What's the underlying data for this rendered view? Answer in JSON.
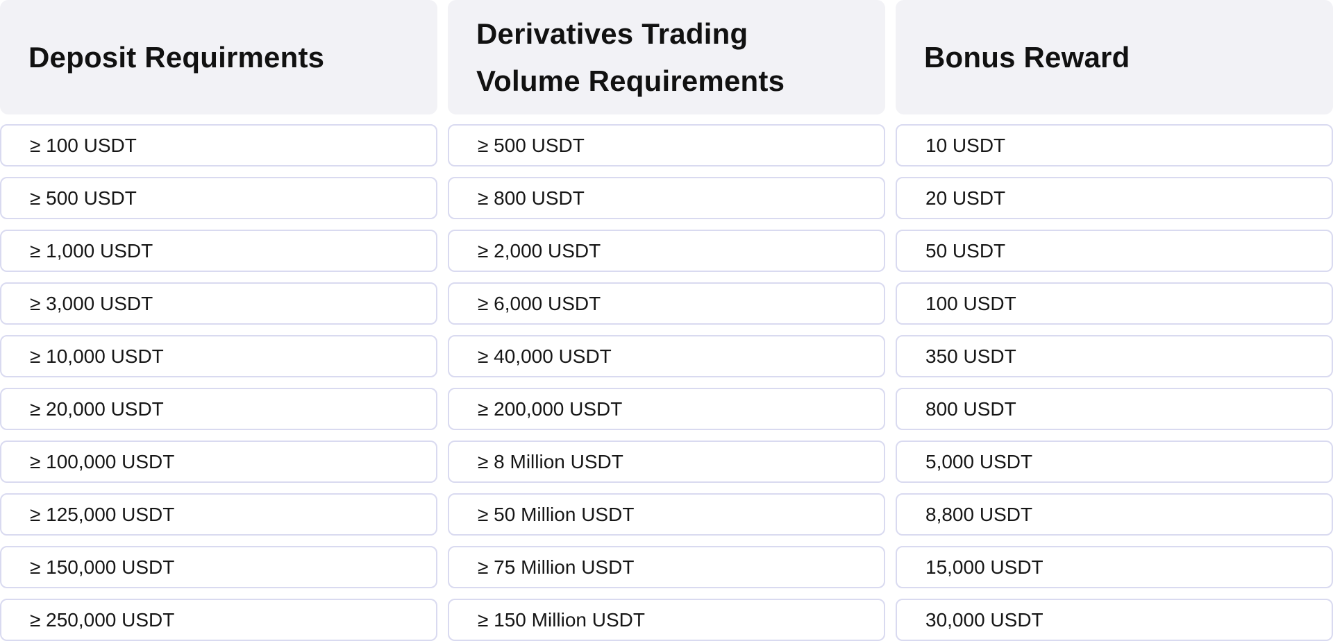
{
  "table": {
    "columns": [
      {
        "header": "Deposit Requirments",
        "rows": [
          "≥ 100 USDT",
          "≥ 500 USDT",
          "≥ 1,000 USDT",
          "≥ 3,000 USDT",
          "≥ 10,000 USDT",
          "≥ 20,000 USDT",
          "≥ 100,000 USDT",
          "≥ 125,000 USDT",
          "≥ 150,000 USDT",
          "≥ 250,000 USDT"
        ]
      },
      {
        "header": "Derivatives Trading Volume Requirements",
        "rows": [
          "≥ 500 USDT",
          "≥ 800 USDT",
          "≥ 2,000 USDT",
          "≥ 6,000 USDT",
          "≥ 40,000 USDT",
          "≥ 200,000 USDT",
          "≥ 8 Million USDT",
          "≥ 50 Million USDT",
          "≥ 75 Million USDT",
          "≥ 150 Million USDT"
        ]
      },
      {
        "header": "Bonus Reward",
        "rows": [
          "10 USDT",
          "20 USDT",
          "50 USDT",
          "100 USDT",
          "350 USDT",
          "800 USDT",
          "5,000 USDT",
          "8,800 USDT",
          "15,000 USDT",
          "30,000 USDT"
        ]
      }
    ]
  },
  "colors": {
    "header_bg": "#f2f2f6",
    "cell_border": "#d9daf0",
    "text": "#111111"
  }
}
